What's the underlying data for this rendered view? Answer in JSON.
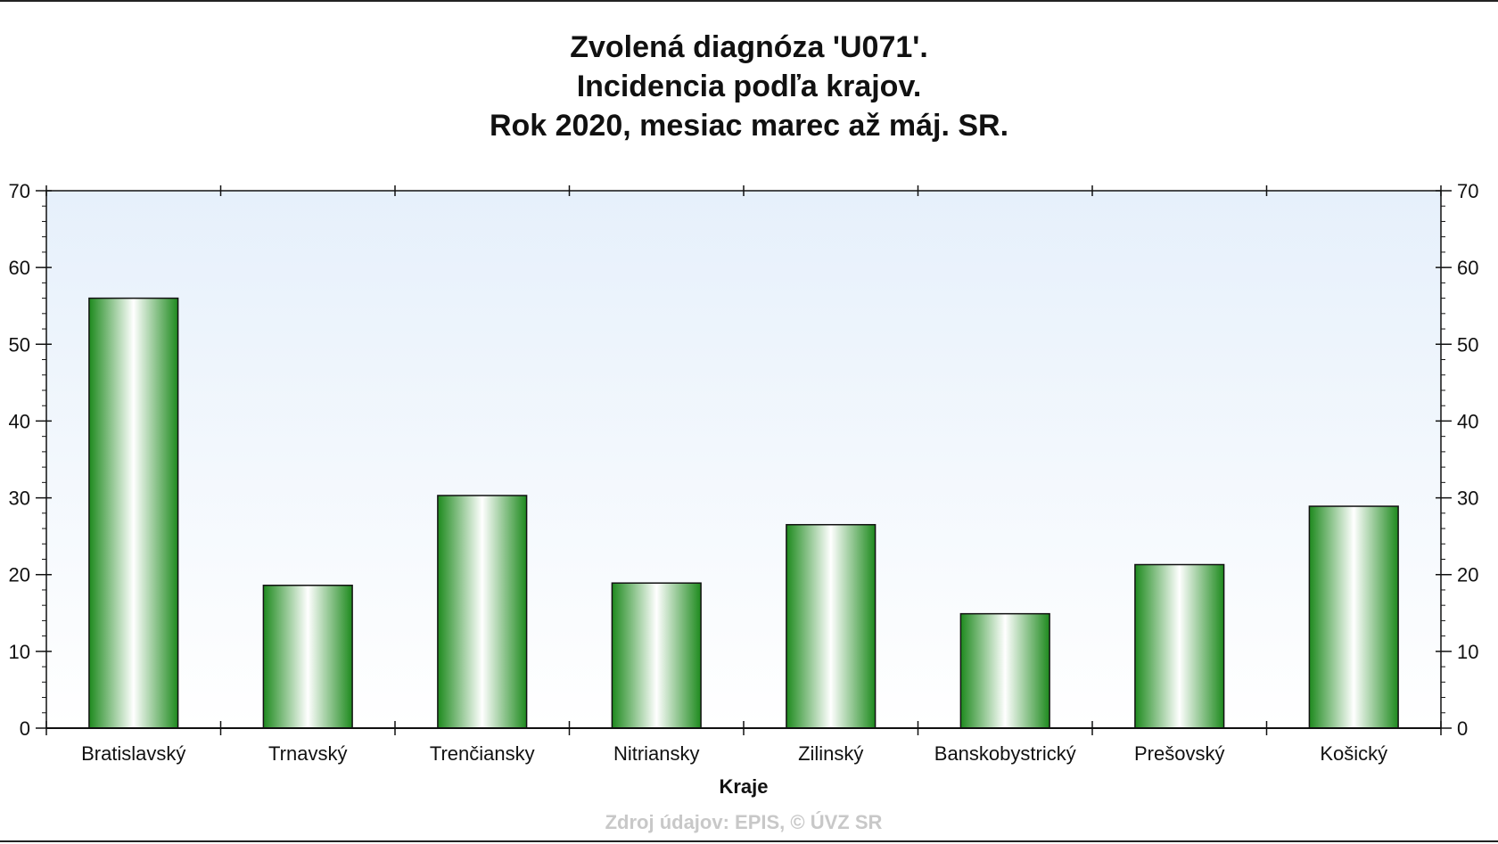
{
  "chart_data": {
    "type": "bar",
    "title_lines": [
      "Zvolená diagnóza 'U071'.",
      "Incidencia podľa krajov.",
      "Rok 2020, mesiac marec až máj. SR."
    ],
    "xlabel": "Kraje",
    "ylabel": "",
    "ylim": [
      0,
      70
    ],
    "y_ticks": [
      0,
      10,
      20,
      30,
      40,
      50,
      60,
      70
    ],
    "y_axis_sides": [
      "left",
      "right"
    ],
    "categories": [
      "Bratislavský",
      "Trnavský",
      "Trenčiansky",
      "Nitriansky",
      "Zilinský",
      "Banskobystrický",
      "Prešovský",
      "Košický"
    ],
    "values": [
      56,
      18.6,
      30.3,
      18.9,
      26.5,
      14.9,
      21.3,
      28.9
    ],
    "bar_color": "#1e8a1e",
    "plot_background_top": "#e6f0fb",
    "plot_background_bottom": "#ffffff",
    "grid": false,
    "source": "Zdroj údajov: EPIS, © ÚVZ SR"
  }
}
